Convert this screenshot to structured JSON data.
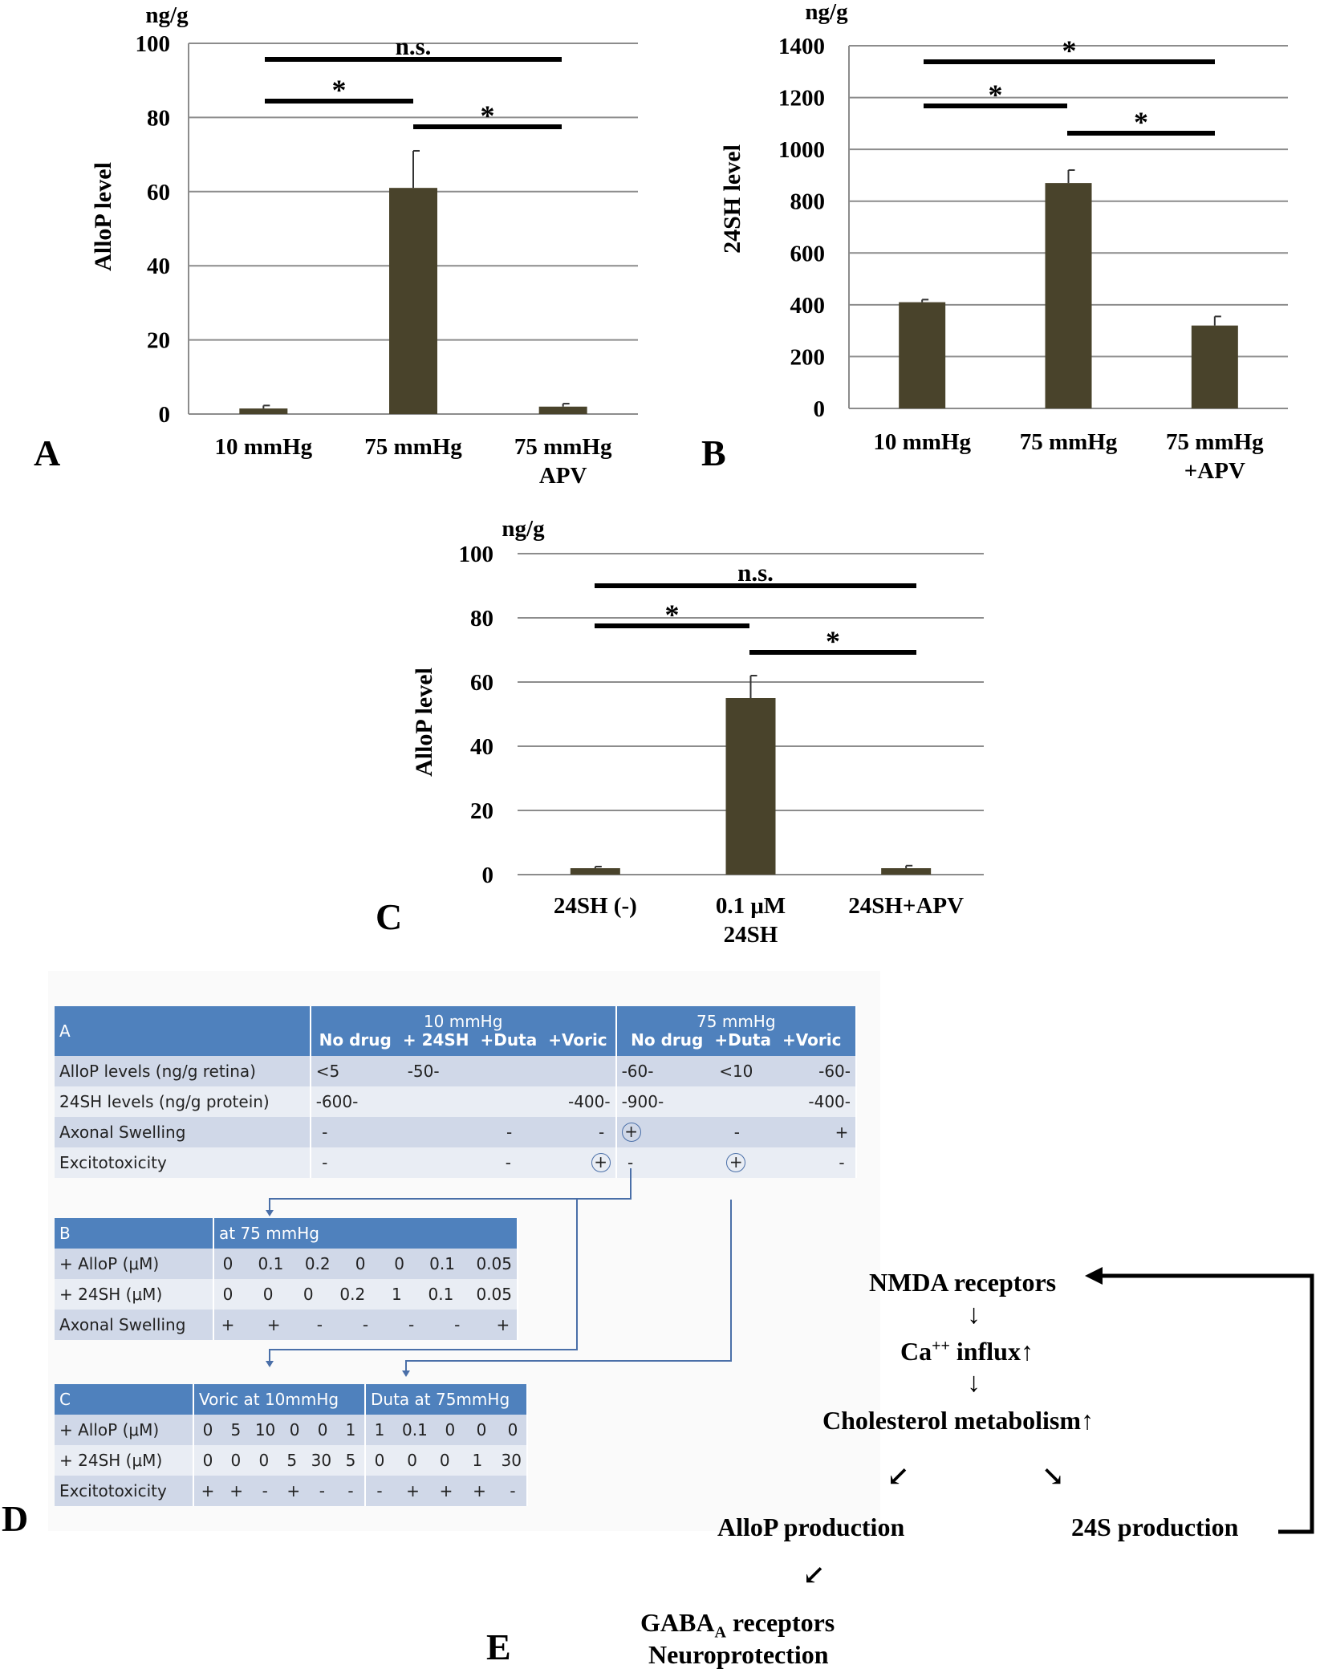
{
  "chart_data": [
    {
      "panel": "A",
      "type": "bar",
      "unit_label": "ng/g",
      "ylabel": "AlloP level",
      "categories": [
        "10 mmHg",
        "75 mmHg",
        "75 mmHg APV"
      ],
      "values": [
        1.5,
        61,
        2
      ],
      "errors": [
        0.8,
        10,
        0.8
      ],
      "ylim": [
        0,
        100
      ],
      "yticks": [
        0,
        20,
        40,
        60,
        80,
        100
      ],
      "grid": true,
      "significance": [
        {
          "from": 0,
          "to": 2,
          "label": "n.s."
        },
        {
          "from": 0,
          "to": 1,
          "label": "*"
        },
        {
          "from": 1,
          "to": 2,
          "label": "*"
        }
      ]
    },
    {
      "panel": "B",
      "type": "bar",
      "unit_label": "ng/g",
      "ylabel": "24SH  level",
      "categories": [
        "10 mmHg",
        "75 mmHg",
        "75 mmHg +APV"
      ],
      "values": [
        410,
        870,
        320
      ],
      "errors": [
        10,
        50,
        35
      ],
      "ylim": [
        0,
        1400
      ],
      "yticks": [
        0,
        200,
        400,
        600,
        800,
        1000,
        1200,
        1400
      ],
      "grid": true,
      "significance": [
        {
          "from": 0,
          "to": 2,
          "label": "*"
        },
        {
          "from": 0,
          "to": 1,
          "label": "*"
        },
        {
          "from": 1,
          "to": 2,
          "label": "*"
        }
      ]
    },
    {
      "panel": "C",
      "type": "bar",
      "unit_label": "ng/g",
      "ylabel": "AlloP level",
      "categories": [
        "24SH (-)",
        "0.1 μM 24SH",
        "24SH+APV"
      ],
      "values": [
        2,
        55,
        2
      ],
      "errors": [
        0.5,
        7,
        0.8
      ],
      "ylim": [
        0,
        100
      ],
      "yticks": [
        0,
        20,
        40,
        60,
        80,
        100
      ],
      "grid": true,
      "significance": [
        {
          "from": 0,
          "to": 2,
          "label": "n.s."
        },
        {
          "from": 0,
          "to": 1,
          "label": "*"
        },
        {
          "from": 1,
          "to": 2,
          "label": "*"
        }
      ]
    }
  ],
  "bar_color": "#49432b",
  "grid_color": "#8c8c8c",
  "table_header_color": "#4f81bd",
  "panel_labels": {
    "a": "A",
    "b": "B",
    "c": "C",
    "d": "D",
    "e": "E"
  },
  "tables": {
    "a": {
      "label": "A",
      "group1": "10 mmHg",
      "group2": "75 mmHg",
      "sub1": [
        "No drug",
        "+ 24SH",
        "+Duta",
        "+Voric"
      ],
      "sub2": [
        "No drug",
        "+Duta",
        "+Voric"
      ],
      "rows": [
        {
          "label": "AlloP levels (ng/g retina)",
          "c10": [
            "<5",
            "-50-",
            "",
            ""
          ],
          "c75": [
            "-60-",
            "<10",
            "-60-"
          ]
        },
        {
          "label": "24SH levels (ng/g protein)",
          "c10": [
            "-600-",
            "",
            "",
            "-400-"
          ],
          "c75": [
            "-900-",
            "",
            "-400-"
          ]
        },
        {
          "label": "Axonal Swelling",
          "c10": [
            "-",
            "",
            "-",
            "-"
          ],
          "c75": [
            "+",
            "-",
            "+"
          ]
        },
        {
          "label": "Excitotoxicity",
          "c10": [
            "-",
            "",
            "-",
            "+"
          ],
          "c75": [
            "-",
            "+",
            "-"
          ]
        }
      ]
    },
    "b": {
      "label": "B",
      "header": "at 75 mmHg",
      "rows": [
        {
          "label": "+ AlloP (μM)",
          "vals": [
            "0",
            "0.1",
            "0.2",
            "0",
            "0",
            "0.1",
            "0.05"
          ]
        },
        {
          "label": "+ 24SH (μM)",
          "vals": [
            "0",
            "0",
            "0",
            "0.2",
            "1",
            "0.1",
            "0.05"
          ]
        },
        {
          "label": "Axonal Swelling",
          "vals": [
            "+",
            "+",
            "-",
            "-",
            "-",
            "-",
            "+"
          ]
        }
      ]
    },
    "c": {
      "label": "C",
      "header1": "Voric at 10mmHg",
      "header2": "Duta at 75mmHg",
      "rows": [
        {
          "label": "+ AlloP (μM)",
          "v1": [
            "0",
            "5",
            "10",
            "0",
            "0",
            "1"
          ],
          "v2": [
            "1",
            "0.1",
            "0",
            "0",
            "0"
          ]
        },
        {
          "label": "+ 24SH (μM)",
          "v1": [
            "0",
            "0",
            "0",
            "5",
            "30",
            "5"
          ],
          "v2": [
            "0",
            "0",
            "0",
            "1",
            "30"
          ]
        },
        {
          "label": "Excitotoxicity",
          "v1": [
            "+",
            "+",
            "-",
            "+",
            "-",
            "-"
          ],
          "v2": [
            "-",
            "+",
            "+",
            "+",
            "-"
          ]
        }
      ]
    }
  },
  "flow": {
    "nmda": "NMDA receptors",
    "ca_pre": "Ca",
    "ca_sup": "++",
    "ca_post": " influx↑",
    "chol": "Cholesterol metabolism↑",
    "allop": "AlloP production",
    "s24": "24S production",
    "gaba_pre": "GABA",
    "gaba_sub": "A",
    "gaba_post": " receptors",
    "neuro": "Neuroprotection",
    "down_arrow": "↓",
    "sw_arrow": "↙",
    "se_arrow": "↘"
  }
}
